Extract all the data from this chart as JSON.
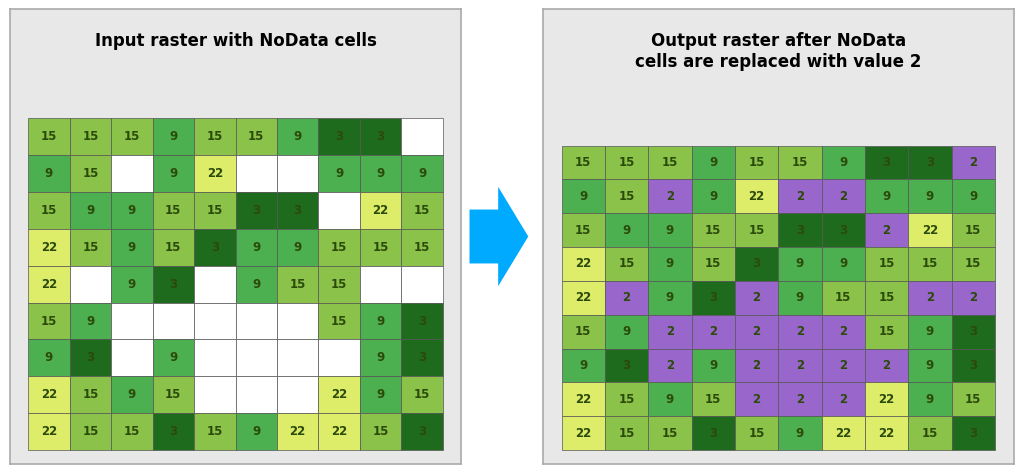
{
  "title_left": "Input raster with NoData cells",
  "title_right": "Output raster after NoData\ncells are replaced with value 2",
  "input_grid": [
    [
      15,
      15,
      15,
      9,
      15,
      15,
      9,
      3,
      3,
      null
    ],
    [
      9,
      15,
      null,
      9,
      22,
      null,
      null,
      9,
      9,
      9
    ],
    [
      15,
      9,
      9,
      15,
      15,
      3,
      3,
      null,
      22,
      15
    ],
    [
      22,
      15,
      9,
      15,
      3,
      9,
      9,
      15,
      15,
      15
    ],
    [
      22,
      null,
      9,
      3,
      null,
      9,
      15,
      15,
      null,
      null
    ],
    [
      15,
      9,
      null,
      null,
      null,
      null,
      null,
      15,
      9,
      3
    ],
    [
      9,
      3,
      null,
      9,
      null,
      null,
      null,
      null,
      9,
      3
    ],
    [
      22,
      15,
      9,
      15,
      null,
      null,
      null,
      22,
      9,
      15
    ],
    [
      22,
      15,
      15,
      3,
      15,
      9,
      22,
      22,
      15,
      3
    ]
  ],
  "output_grid": [
    [
      15,
      15,
      15,
      9,
      15,
      15,
      9,
      3,
      3,
      2
    ],
    [
      9,
      15,
      2,
      9,
      22,
      2,
      2,
      9,
      9,
      9
    ],
    [
      15,
      9,
      9,
      15,
      15,
      3,
      3,
      2,
      22,
      15
    ],
    [
      22,
      15,
      9,
      15,
      3,
      9,
      9,
      15,
      15,
      15
    ],
    [
      22,
      2,
      9,
      3,
      2,
      9,
      15,
      15,
      2,
      2
    ],
    [
      15,
      9,
      2,
      2,
      2,
      2,
      2,
      15,
      9,
      3
    ],
    [
      9,
      3,
      2,
      9,
      2,
      2,
      2,
      2,
      9,
      3
    ],
    [
      22,
      15,
      9,
      15,
      2,
      2,
      2,
      22,
      9,
      15
    ],
    [
      22,
      15,
      15,
      3,
      15,
      9,
      22,
      22,
      15,
      3
    ]
  ],
  "color_map": {
    "null": "#FFFFFF",
    "2": "#9966CC",
    "3": "#1E6B1E",
    "9": "#4CAF50",
    "15": "#8BC34A",
    "22": "#DDED6A"
  },
  "panel_bg": "#E8E8E8",
  "grid_line_color": "#555555",
  "text_color": "#2C4A0A",
  "arrow_color": "#00AAFF",
  "title_fontsize": 12,
  "cell_text_fontsize": 8.5
}
